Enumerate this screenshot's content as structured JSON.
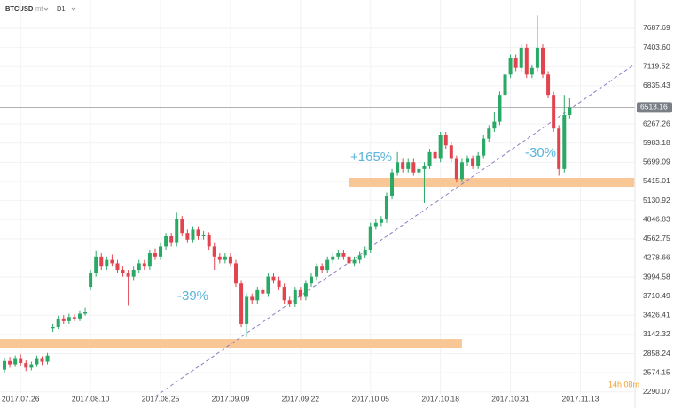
{
  "header": {
    "symbol": "BTCUSD",
    "source": "mt",
    "timeframe": "D1"
  },
  "timer": "14h 08m",
  "annotations": [
    "+165%",
    "-39%",
    "-30%"
  ],
  "chart_data": {
    "type": "candlestick",
    "categories": [
      null,
      null,
      null,
      "2017.07.26",
      null,
      null,
      null,
      null,
      null,
      null,
      null,
      null,
      null,
      null,
      null,
      null,
      "2017.08.10",
      null,
      null,
      null,
      null,
      null,
      null,
      null,
      null,
      null,
      null,
      null,
      null,
      "2017.08.25",
      null,
      null,
      null,
      null,
      null,
      null,
      null,
      null,
      null,
      null,
      null,
      null,
      "2017.09.09",
      null,
      null,
      null,
      null,
      null,
      null,
      null,
      null,
      null,
      null,
      null,
      null,
      "2017.09.22",
      null,
      null,
      null,
      null,
      null,
      null,
      null,
      null,
      null,
      null,
      null,
      null,
      "2017.10.05",
      null,
      null,
      null,
      null,
      null,
      null,
      null,
      null,
      null,
      null,
      null,
      null,
      "2017.10.18",
      null,
      null,
      null,
      null,
      null,
      null,
      null,
      null,
      null,
      null,
      null,
      null,
      "2017.10.31",
      null,
      null,
      null,
      null,
      null,
      null,
      null,
      null,
      null,
      null,
      null,
      null,
      "2017.11.13"
    ],
    "open": [
      2620,
      2750,
      2700,
      2780,
      2720,
      2650,
      2700,
      2780,
      2740,
      3230,
      3250,
      3380,
      3340,
      3400,
      3380,
      3450,
      3850,
      4050,
      4300,
      4150,
      4250,
      4200,
      4100,
      4050,
      4000,
      4100,
      4200,
      4150,
      4350,
      4300,
      4450,
      4600,
      4500,
      4850,
      4650,
      4550,
      4700,
      4600,
      4620,
      4450,
      4300,
      4250,
      4300,
      4200,
      3900,
      3300,
      3700,
      3650,
      3800,
      3750,
      4000,
      3950,
      3850,
      3650,
      3600,
      3800,
      3700,
      3900,
      4000,
      4150,
      4100,
      4250,
      4300,
      4350,
      4300,
      4200,
      4250,
      4320,
      4400,
      4750,
      4800,
      4850,
      5200,
      5550,
      5700,
      5600,
      5700,
      5550,
      5600,
      5650,
      5850,
      5750,
      6100,
      5950,
      5750,
      5450,
      5700,
      5750,
      5650,
      5800,
      6050,
      6200,
      6300,
      6700,
      7000,
      7250,
      7100,
      7400,
      7000,
      7100,
      7400,
      7000,
      6700,
      6200,
      5600,
      6400,
      null,
      null
    ],
    "high": [
      2800,
      2810,
      2830,
      2850,
      2760,
      2740,
      2830,
      2820,
      2870,
      3300,
      3420,
      3430,
      3450,
      3440,
      3500,
      3540,
      4100,
      4380,
      4350,
      4300,
      4330,
      4250,
      4150,
      4100,
      4150,
      4250,
      4250,
      4400,
      4420,
      4500,
      4650,
      4650,
      4950,
      4900,
      4700,
      4750,
      4750,
      4680,
      4660,
      4500,
      4350,
      4350,
      4350,
      4250,
      3950,
      3750,
      3750,
      3850,
      3850,
      4050,
      4050,
      4000,
      3900,
      3700,
      3850,
      3850,
      3950,
      4050,
      4200,
      4200,
      4300,
      4350,
      4400,
      4400,
      4350,
      4300,
      4370,
      4450,
      4800,
      4850,
      4900,
      5250,
      5600,
      5850,
      5750,
      5750,
      5750,
      5650,
      5700,
      5900,
      5900,
      6150,
      6150,
      6000,
      5800,
      5750,
      5800,
      5800,
      5850,
      6100,
      6250,
      6450,
      6750,
      7050,
      7300,
      7300,
      7450,
      7450,
      7150,
      7880,
      7450,
      7050,
      6750,
      6250,
      6700,
      6650,
      null,
      null
    ],
    "low": [
      2580,
      2650,
      2660,
      2680,
      2600,
      2610,
      2660,
      2690,
      2700,
      3180,
      3220,
      3300,
      3300,
      3340,
      3340,
      3420,
      3800,
      4000,
      4100,
      4100,
      4150,
      4050,
      4000,
      3570,
      3950,
      4050,
      4100,
      4100,
      4250,
      4250,
      4400,
      4450,
      4450,
      4600,
      4500,
      4500,
      4550,
      4550,
      4400,
      4100,
      4200,
      4200,
      4150,
      3850,
      3250,
      3100,
      3600,
      3600,
      3700,
      3700,
      3900,
      3800,
      3600,
      3550,
      3550,
      3650,
      3650,
      3850,
      3950,
      4050,
      4050,
      4200,
      4250,
      4250,
      4150,
      4150,
      4200,
      4280,
      4350,
      4700,
      4750,
      4800,
      5150,
      5500,
      5550,
      5550,
      5500,
      5500,
      5100,
      5600,
      5700,
      5700,
      5900,
      5700,
      5400,
      5400,
      5650,
      5600,
      5600,
      5750,
      6000,
      6150,
      6250,
      6650,
      6950,
      7050,
      7050,
      6950,
      6950,
      7050,
      6950,
      6650,
      6150,
      5500,
      5550,
      6350,
      null,
      null
    ],
    "close": [
      2750,
      2700,
      2780,
      2720,
      2650,
      2700,
      2780,
      2740,
      2830,
      3250,
      3380,
      3340,
      3400,
      3380,
      3450,
      3480,
      4050,
      4300,
      4150,
      4250,
      4200,
      4100,
      4050,
      4000,
      4100,
      4200,
      4150,
      4350,
      4300,
      4450,
      4600,
      4500,
      4850,
      4650,
      4550,
      4700,
      4600,
      4620,
      4450,
      4300,
      4250,
      4300,
      4200,
      3900,
      3300,
      3700,
      3650,
      3800,
      3750,
      4000,
      3950,
      3850,
      3650,
      3600,
      3800,
      3700,
      3900,
      4000,
      4150,
      4100,
      4250,
      4300,
      4350,
      4300,
      4200,
      4250,
      4320,
      4400,
      4750,
      4800,
      4850,
      5200,
      5550,
      5700,
      5600,
      5700,
      5550,
      5600,
      5650,
      5850,
      5750,
      6100,
      5950,
      5750,
      5450,
      5700,
      5750,
      5650,
      5800,
      6050,
      6200,
      6300,
      6700,
      7000,
      7250,
      7100,
      7400,
      7000,
      7100,
      7400,
      7000,
      6700,
      6200,
      5600,
      6400,
      6513.16,
      null,
      null
    ],
    "up_color": "#2aa866",
    "down_color": "#e2444f",
    "ylim": [
      2261,
      8108
    ],
    "yticks": [
      2290.07,
      2574.15,
      2858.24,
      3142.32,
      3426.41,
      3710.49,
      3994.58,
      4278.66,
      4562.75,
      4846.83,
      5130.92,
      5415.01,
      5699.09,
      5983.18,
      6267.26,
      6835.43,
      7119.52,
      {
        "value": 7403.6,
        "label": "7403.60"
      },
      7687.69
    ],
    "grid": true,
    "current_price": 6513.16,
    "zones": [
      {
        "y_range": [
          5336,
          5467
        ],
        "x_range": [
          64,
          117
        ],
        "color": "#f9c796"
      },
      {
        "y_range": [
          2944,
          3075
        ],
        "x_range": [
          -1,
          85
        ],
        "color": "#f9c796"
      }
    ],
    "trendline": {
      "points": [
        [
          28,
          2220
        ],
        [
          117,
          7150
        ]
      ],
      "color": "#8e7cc3"
    }
  }
}
